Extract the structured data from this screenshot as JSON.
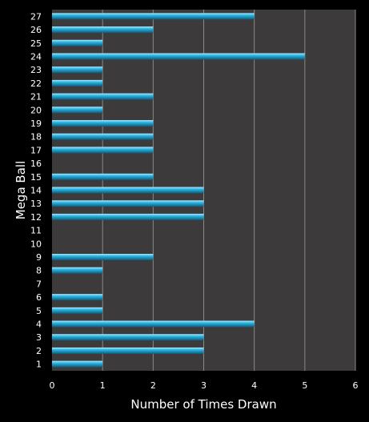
{
  "chart_data": {
    "type": "bar",
    "orientation": "horizontal",
    "categories": [
      "1",
      "2",
      "3",
      "4",
      "5",
      "6",
      "7",
      "8",
      "9",
      "10",
      "11",
      "12",
      "13",
      "14",
      "15",
      "16",
      "17",
      "18",
      "19",
      "20",
      "21",
      "22",
      "23",
      "24",
      "25",
      "26",
      "27"
    ],
    "values": [
      1,
      3,
      3,
      4,
      1,
      1,
      0,
      1,
      2,
      0,
      0,
      3,
      3,
      3,
      2,
      0,
      2,
      2,
      2,
      1,
      2,
      1,
      1,
      5,
      1,
      2,
      4
    ],
    "xlabel": "Number of Times Drawn",
    "ylabel": "Mega Ball",
    "xlim": [
      0,
      6
    ],
    "xticks": [
      "0",
      "1",
      "2",
      "3",
      "4",
      "5",
      "6"
    ],
    "grid": "vertical",
    "colors": {
      "bar": "#2ab7e6",
      "bar_highlight": "#aee9fb",
      "bar_shadow": "#0f5a78",
      "plot_bg": "#3c3a3a",
      "page_bg": "#000000",
      "grid": "#8a8a8a"
    }
  }
}
